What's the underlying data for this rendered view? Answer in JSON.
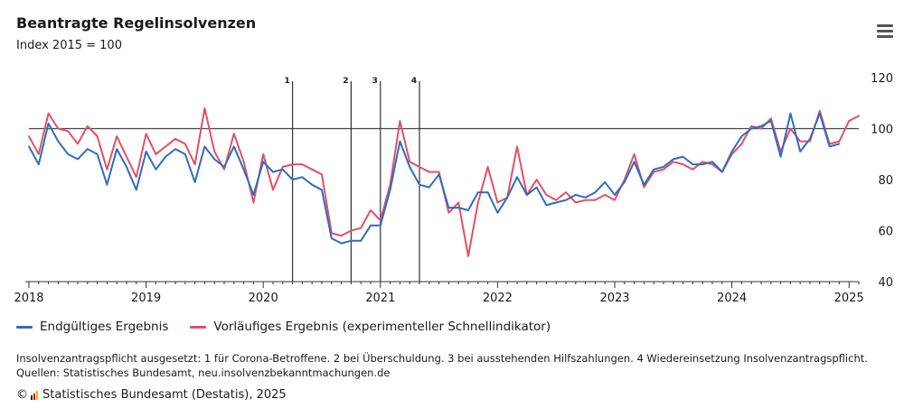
{
  "chart_data": {
    "type": "line",
    "title": "Beantragte Regelinsolvenzen",
    "subtitle": "Index 2015 = 100",
    "x_start": "2018-01",
    "x_labels": [
      "2018",
      "2019",
      "2020",
      "2021",
      "2022",
      "2023",
      "2024",
      "2025"
    ],
    "ylim": [
      40,
      120
    ],
    "yticks": [
      40,
      60,
      80,
      100,
      120
    ],
    "reference_line": 100,
    "grid": false,
    "legend_position": "bottom-left",
    "series": [
      {
        "name": "Endgültiges Ergebnis",
        "color": "#2f6cc2",
        "values": [
          93,
          86,
          102,
          95,
          90,
          88,
          92,
          90,
          78,
          92,
          85,
          76,
          91,
          84,
          89,
          92,
          90,
          79,
          93,
          88,
          85,
          93,
          84,
          74,
          87,
          83,
          84,
          80,
          81,
          78,
          76,
          57,
          55,
          56,
          56,
          62,
          62,
          76,
          95,
          85,
          78,
          77,
          82,
          69,
          69,
          68,
          75,
          75,
          67,
          73,
          81,
          74,
          77,
          70,
          71,
          72,
          74,
          73,
          75,
          79,
          74,
          79,
          87,
          78,
          84,
          85,
          88,
          89,
          86,
          86,
          87,
          83,
          91,
          97,
          100,
          101,
          103,
          89,
          106,
          91,
          96,
          106,
          93,
          94
        ]
      },
      {
        "name": "Vorläufiges Ergebnis (experimenteller Schnellindikator)",
        "color": "#e15064",
        "values": [
          97,
          90,
          106,
          100,
          99,
          94,
          101,
          97,
          84,
          97,
          89,
          81,
          98,
          90,
          93,
          96,
          94,
          86,
          108,
          91,
          84,
          98,
          87,
          71,
          90,
          76,
          85,
          86,
          86,
          84,
          82,
          59,
          58,
          60,
          61,
          68,
          64,
          78,
          103,
          87,
          85,
          83,
          83,
          67,
          71,
          50,
          71,
          85,
          71,
          73,
          93,
          74,
          80,
          74,
          72,
          75,
          71,
          72,
          72,
          74,
          72,
          80,
          90,
          77,
          83,
          84,
          87,
          86,
          84,
          87,
          86,
          83,
          90,
          94,
          101,
          100,
          104,
          91,
          100,
          95,
          95,
          107,
          94,
          95,
          103,
          105
        ]
      }
    ],
    "vertical_markers": [
      {
        "label": "1",
        "date": "2020-04"
      },
      {
        "label": "2",
        "date": "2020-10"
      },
      {
        "label": "3",
        "date": "2021-01"
      },
      {
        "label": "4",
        "date": "2021-05"
      }
    ]
  },
  "footnote_line1": "Insolvenzantragspflicht ausgesetzt: 1 für Corona-Betroffene. 2 bei Überschuldung. 3 bei ausstehenden Hilfszahlungen. 4 Wiedereinsetzung Insolvenzantragspflicht.",
  "footnote_line2": "Quellen: Statistisches Bundesamt, neu.insolvenzbekanntmachungen.de",
  "credit_symbol": "©",
  "credit_text": "Statistisches Bundesamt (Destatis), 2025",
  "menu_icon": "hamburger-menu-icon"
}
